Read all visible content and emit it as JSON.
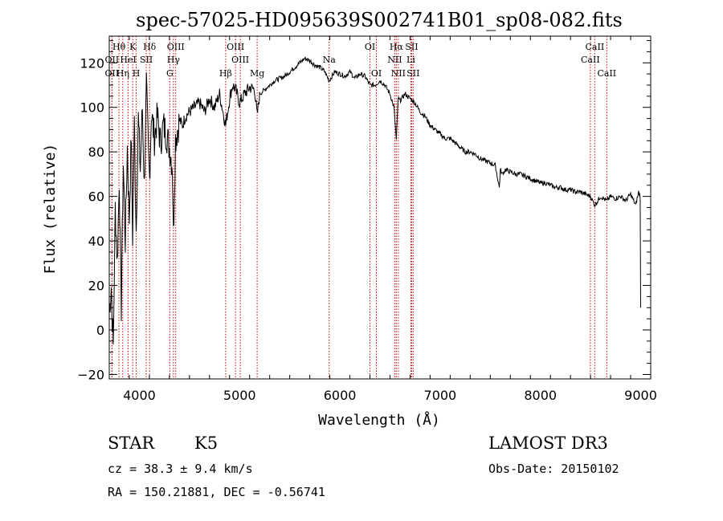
{
  "chart_data": {
    "type": "line",
    "title": "spec-57025-HD095639S002741B01_sp08-082.fits",
    "xlabel": "Wavelength (Å)",
    "ylabel": "Flux (relative)",
    "xlim": [
      3700,
      9100
    ],
    "ylim": [
      -22,
      132
    ],
    "xticks": [
      4000,
      5000,
      6000,
      7000,
      8000,
      9000
    ],
    "xtick_labels": [
      "4000",
      "5000",
      "6000",
      "7000",
      "8000",
      "9000"
    ],
    "yticks": [
      -20,
      0,
      20,
      40,
      60,
      80,
      100,
      120
    ],
    "ytick_labels": [
      "−20",
      "0",
      "20",
      "40",
      "60",
      "80",
      "100",
      "120"
    ],
    "series": [
      {
        "name": "spectrum",
        "x": [
          3700,
          3720,
          3740,
          3760,
          3780,
          3800,
          3820,
          3840,
          3860,
          3880,
          3900,
          3920,
          3933,
          3950,
          3968,
          3990,
          4010,
          4030,
          4050,
          4070,
          4090,
          4102,
          4120,
          4150,
          4180,
          4210,
          4240,
          4270,
          4300,
          4330,
          4340,
          4360,
          4380,
          4400,
          4430,
          4460,
          4500,
          4550,
          4600,
          4650,
          4700,
          4750,
          4800,
          4861,
          4900,
          4930,
          4960,
          5000,
          5050,
          5100,
          5150,
          5175,
          5200,
          5250,
          5300,
          5350,
          5400,
          5450,
          5500,
          5550,
          5600,
          5650,
          5700,
          5750,
          5800,
          5850,
          5893,
          5950,
          6000,
          6050,
          6100,
          6150,
          6200,
          6250,
          6300,
          6350,
          6400,
          6450,
          6500,
          6540,
          6563,
          6580,
          6600,
          6650,
          6700,
          6750,
          6800,
          6850,
          6900,
          6950,
          7000,
          7050,
          7100,
          7150,
          7200,
          7250,
          7300,
          7350,
          7400,
          7450,
          7500,
          7550,
          7590,
          7600,
          7620,
          7650,
          7700,
          7750,
          7800,
          7850,
          7900,
          7950,
          8000,
          8050,
          8100,
          8150,
          8200,
          8250,
          8300,
          8350,
          8400,
          8450,
          8500,
          8542,
          8600,
          8662,
          8700,
          8750,
          8800,
          8850,
          8900,
          8950,
          8980,
          8995,
          9000
        ],
        "values": [
          8,
          20,
          -8,
          55,
          30,
          68,
          10,
          75,
          40,
          82,
          50,
          88,
          42,
          92,
          45,
          95,
          72,
          100,
          64,
          110,
          80,
          68,
          98,
          86,
          96,
          84,
          92,
          88,
          82,
          74,
          42,
          86,
          90,
          94,
          92,
          96,
          98,
          100,
          102,
          98,
          104,
          100,
          106,
          92,
          104,
          110,
          108,
          102,
          106,
          109,
          108,
          96,
          106,
          108,
          110,
          112,
          113,
          114,
          116,
          118,
          120,
          122,
          121,
          119,
          118,
          116,
          112,
          116,
          115,
          114,
          116,
          113,
          115,
          114,
          110,
          110,
          112,
          110,
          106,
          100,
          85,
          104,
          103,
          106,
          104,
          102,
          98,
          96,
          92,
          90,
          88,
          86,
          86,
          84,
          82,
          80,
          80,
          79,
          77,
          76,
          75,
          74,
          64,
          72,
          70,
          72,
          71,
          70,
          70,
          69,
          68,
          67,
          66,
          66,
          65,
          64,
          64,
          63,
          63,
          62,
          62,
          61,
          60,
          56,
          60,
          58,
          60,
          59,
          60,
          58,
          61,
          56,
          62,
          60,
          10
        ]
      }
    ],
    "line_markers": [
      {
        "label": "Hθ",
        "wavelength": 3797,
        "row": 0
      },
      {
        "label": "OII",
        "wavelength": 3727,
        "row": 1
      },
      {
        "label": "OII",
        "wavelength": 3727,
        "row": 2
      },
      {
        "label": "Hη",
        "wavelength": 3835,
        "row": 2
      },
      {
        "label": "HeI",
        "wavelength": 3889,
        "row": 1
      },
      {
        "label": "K",
        "wavelength": 3934,
        "row": 0
      },
      {
        "label": "H",
        "wavelength": 3969,
        "row": 2
      },
      {
        "label": "SII",
        "wavelength": 4069,
        "row": 1
      },
      {
        "label": "Hδ",
        "wavelength": 4102,
        "row": 0
      },
      {
        "label": "OIII",
        "wavelength": 4363,
        "row": 0
      },
      {
        "label": "Hγ",
        "wavelength": 4340,
        "row": 1
      },
      {
        "label": "G",
        "wavelength": 4304,
        "row": 2
      },
      {
        "label": "Hβ",
        "wavelength": 4861,
        "row": 2
      },
      {
        "label": "OIII",
        "wavelength": 4959,
        "row": 0
      },
      {
        "label": "OIII",
        "wavelength": 5007,
        "row": 1
      },
      {
        "label": "Mg",
        "wavelength": 5175,
        "row": 2
      },
      {
        "label": "Na",
        "wavelength": 5893,
        "row": 1
      },
      {
        "label": "OI",
        "wavelength": 6300,
        "row": 0
      },
      {
        "label": "OI",
        "wavelength": 6364,
        "row": 2
      },
      {
        "label": "Hα",
        "wavelength": 6563,
        "row": 0
      },
      {
        "label": "NII",
        "wavelength": 6548,
        "row": 1
      },
      {
        "label": "NII",
        "wavelength": 6583,
        "row": 2
      },
      {
        "label": "SII",
        "wavelength": 6716,
        "row": 0
      },
      {
        "label": "Li",
        "wavelength": 6708,
        "row": 1
      },
      {
        "label": "SII",
        "wavelength": 6731,
        "row": 2
      },
      {
        "label": "CaII",
        "wavelength": 8542,
        "row": 0
      },
      {
        "label": "CaII",
        "wavelength": 8498,
        "row": 1
      },
      {
        "label": "CaII",
        "wavelength": 8662,
        "row": 2
      }
    ],
    "marker_style": {
      "color": "#cc0000",
      "dash": "dotted"
    }
  },
  "info": {
    "object_class": "STAR",
    "subclass": "K5",
    "survey": "LAMOST DR3",
    "cz": "cz = 38.3 ± 9.4 km/s",
    "obs_date": "Obs-Date: 20150102",
    "coords": "RA = 150.21881, DEC =  -0.56741"
  }
}
